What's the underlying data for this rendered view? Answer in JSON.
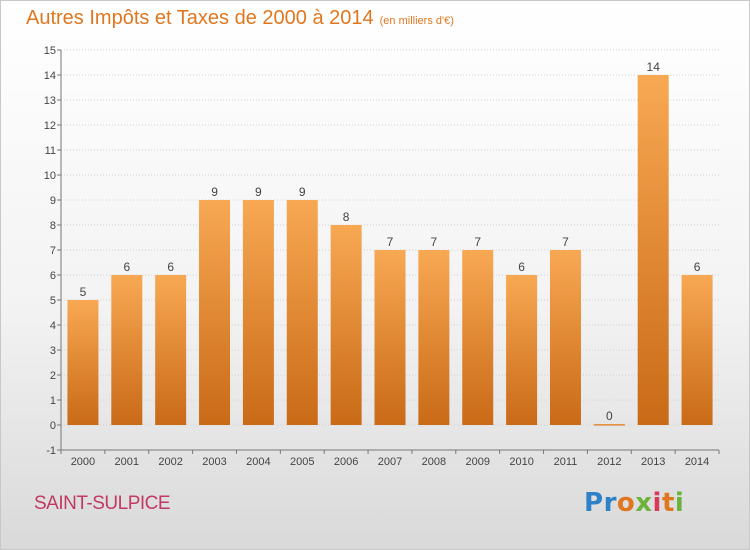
{
  "title": "Autres Impôts et Taxes de 2000 à 2014",
  "unit": "(en milliers d'€)",
  "town": "SAINT-SULPICE",
  "brand": {
    "letters": [
      "P",
      "r",
      "o",
      "x",
      "i",
      "t",
      "i"
    ],
    "colors": [
      "#2f82c8",
      "#2f82c8",
      "#e0771f",
      "#6bb33c",
      "#d83a5a",
      "#e0771f",
      "#6bb33c"
    ]
  },
  "colors": {
    "bar_top": "#f8a853",
    "bar_bottom": "#c96a17",
    "grid": "#d0d0d0",
    "axis": "#777777",
    "text": "#444444"
  },
  "chart_data": {
    "type": "bar",
    "categories": [
      "2000",
      "2001",
      "2002",
      "2003",
      "2004",
      "2005",
      "2006",
      "2007",
      "2008",
      "2009",
      "2010",
      "2011",
      "2012",
      "2013",
      "2014"
    ],
    "values": [
      5,
      6,
      6,
      9,
      9,
      9,
      8,
      7,
      7,
      7,
      6,
      7,
      0,
      14,
      6
    ],
    "ylim": [
      -1,
      15
    ],
    "yticks": [
      "-1",
      "0",
      "1",
      "2",
      "3",
      "4",
      "5",
      "6",
      "7",
      "8",
      "9",
      "10",
      "11",
      "12",
      "13",
      "14",
      "15"
    ],
    "grid": true,
    "title": "Autres Impôts et Taxes de 2000 à 2014",
    "xlabel": "",
    "ylabel": ""
  }
}
